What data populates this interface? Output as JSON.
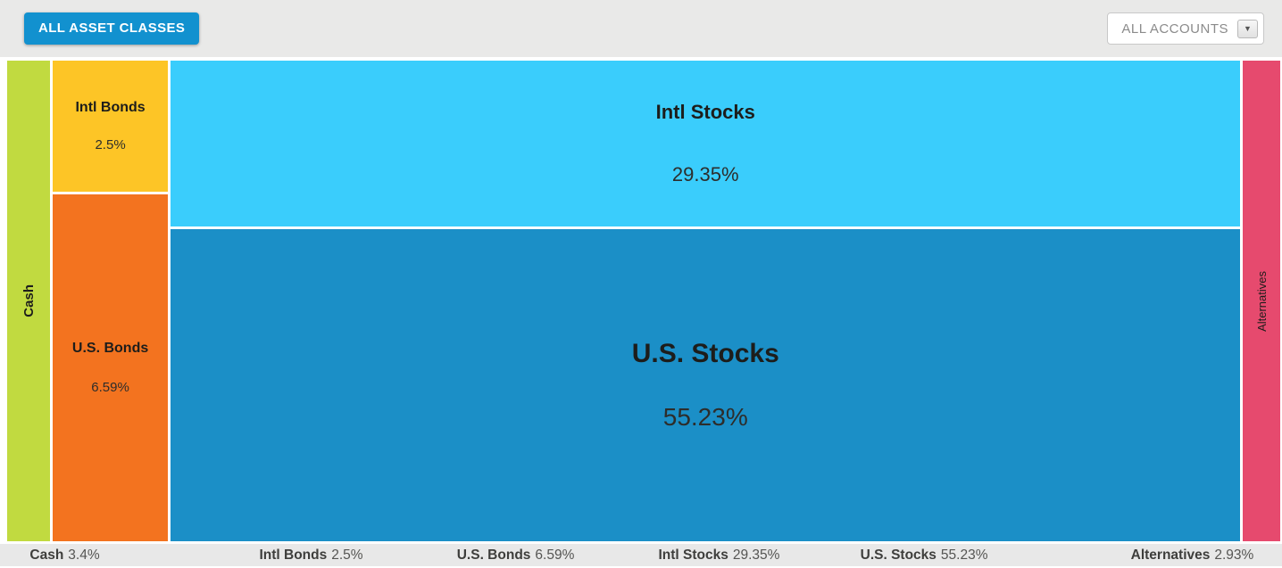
{
  "toolbar": {
    "asset_classes_button": "ALL ASSET CLASSES",
    "accounts_dropdown": {
      "label": "ALL ACCOUNTS",
      "arrow_icon": "▼"
    }
  },
  "chart_data": {
    "type": "treemap",
    "title": "Asset allocation by class",
    "unit": "%",
    "total": 100,
    "columns": [
      {
        "name": "cash",
        "blocks": [
          {
            "label": "Cash",
            "value": 3.4,
            "display_value": "3.4%",
            "color": "#c1da40",
            "label_style": "vertical"
          }
        ]
      },
      {
        "name": "bonds",
        "blocks": [
          {
            "label": "Intl Bonds",
            "value": 2.5,
            "display_value": "2.5%",
            "color": "#fdc526"
          },
          {
            "label": "U.S. Bonds",
            "value": 6.59,
            "display_value": "6.59%",
            "color": "#f3731f"
          }
        ]
      },
      {
        "name": "stocks",
        "blocks": [
          {
            "label": "Intl Stocks",
            "value": 29.35,
            "display_value": "29.35%",
            "color": "#3acdfc"
          },
          {
            "label": "U.S. Stocks",
            "value": 55.23,
            "display_value": "55.23%",
            "color": "#1b8fc7"
          }
        ]
      },
      {
        "name": "alternatives",
        "blocks": [
          {
            "label": "Alternatives",
            "value": 2.93,
            "display_value": "2.93%",
            "color": "#e64a6e",
            "label_style": "vertical"
          }
        ]
      }
    ]
  },
  "legend": {
    "items": [
      {
        "label": "Cash",
        "value": "3.4%"
      },
      {
        "label": "Intl Bonds",
        "value": "2.5%"
      },
      {
        "label": "U.S. Bonds",
        "value": "6.59%"
      },
      {
        "label": "Intl Stocks",
        "value": "29.35%"
      },
      {
        "label": "U.S. Stocks",
        "value": "55.23%"
      },
      {
        "label": "Alternatives",
        "value": "2.93%"
      }
    ]
  },
  "colors": {
    "accent_blue": "#1291cf",
    "toolbar_background": "#e9e9e8",
    "legend_background": "#e8e8e8",
    "gap_white": "#ffffff"
  }
}
